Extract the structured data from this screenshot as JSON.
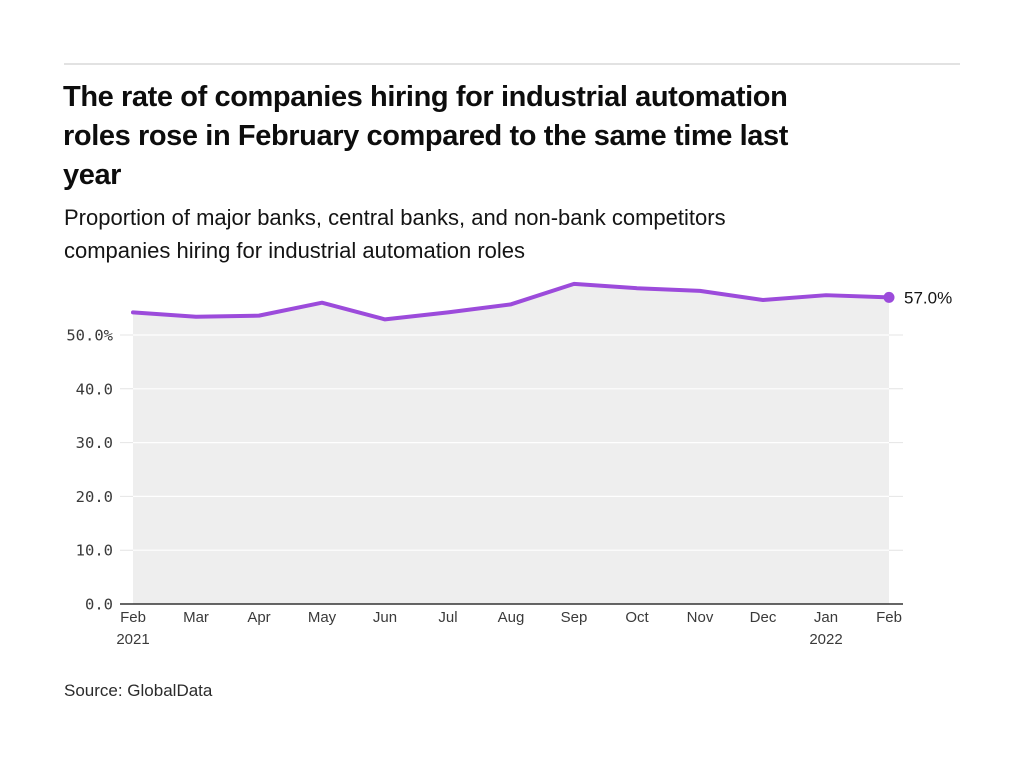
{
  "header": {
    "title_lines": [
      "The rate of companies hiring for industrial automation",
      "roles rose in February compared to the same time last",
      "year"
    ],
    "subtitle_lines": [
      "Proportion of major banks, central banks, and non-bank competitors",
      "companies hiring for industrial automation roles"
    ]
  },
  "footer": {
    "source": "Source: GlobalData"
  },
  "chart_data": {
    "type": "line",
    "title": "The rate of companies hiring for industrial automation roles rose in February compared to the same time last year",
    "subtitle": "Proportion of major banks, central banks, and non-bank competitors companies hiring for industrial automation roles",
    "source": "Source: GlobalData",
    "categories": [
      "Feb 2021",
      "Mar",
      "Apr",
      "May",
      "Jun",
      "Jul",
      "Aug",
      "Sep",
      "Oct",
      "Nov",
      "Dec",
      "Jan 2022",
      "Feb 2022"
    ],
    "x_tick_labels": [
      {
        "label": "Feb",
        "sublabel": "2021"
      },
      {
        "label": "Mar"
      },
      {
        "label": "Apr"
      },
      {
        "label": "May"
      },
      {
        "label": "Jun"
      },
      {
        "label": "Jul"
      },
      {
        "label": "Aug"
      },
      {
        "label": "Sep"
      },
      {
        "label": "Oct"
      },
      {
        "label": "Nov"
      },
      {
        "label": "Dec"
      },
      {
        "label": "Jan",
        "sublabel": "2022"
      },
      {
        "label": "Feb"
      }
    ],
    "values": [
      54.2,
      53.4,
      53.6,
      56.0,
      52.9,
      54.2,
      55.7,
      59.5,
      58.7,
      58.2,
      56.5,
      57.4,
      57.0
    ],
    "unit": "%",
    "end_label": "57.0%",
    "ylim": [
      0,
      62
    ],
    "yticks": [
      {
        "v": 0,
        "label": "0.0"
      },
      {
        "v": 10,
        "label": "10.0"
      },
      {
        "v": 20,
        "label": "20.0"
      },
      {
        "v": 30,
        "label": "30.0"
      },
      {
        "v": 40,
        "label": "40.0"
      },
      {
        "v": 50,
        "label": "50.0%"
      }
    ],
    "grid": "horizontal",
    "legend": "none",
    "line_color": "#9C4BDB",
    "fill_color": "#EEEEEE"
  }
}
